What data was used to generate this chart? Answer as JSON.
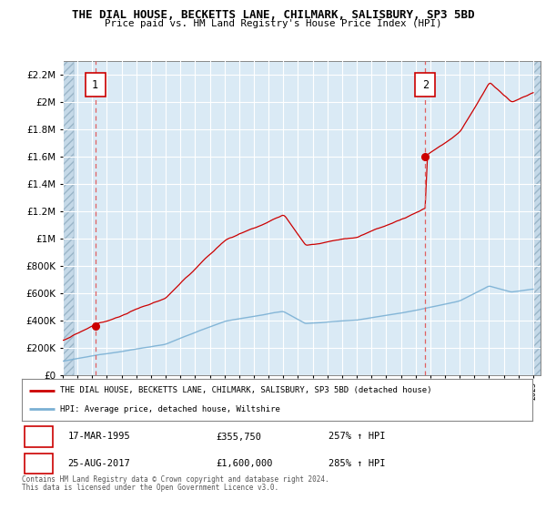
{
  "title": "THE DIAL HOUSE, BECKETTS LANE, CHILMARK, SALISBURY, SP3 5BD",
  "subtitle": "Price paid vs. HM Land Registry's House Price Index (HPI)",
  "legend_line1": "THE DIAL HOUSE, BECKETTS LANE, CHILMARK, SALISBURY, SP3 5BD (detached house)",
  "legend_line2": "HPI: Average price, detached house, Wiltshire",
  "footnote1": "Contains HM Land Registry data © Crown copyright and database right 2024.",
  "footnote2": "This data is licensed under the Open Government Licence v3.0.",
  "sale1_date": "17-MAR-1995",
  "sale1_price": "£355,750",
  "sale1_hpi": "257% ↑ HPI",
  "sale1_x": 1995.21,
  "sale1_y": 355750,
  "sale2_date": "25-AUG-2017",
  "sale2_price": "£1,600,000",
  "sale2_hpi": "285% ↑ HPI",
  "sale2_x": 2017.65,
  "sale2_y": 1600000,
  "xlim": [
    1993.0,
    2025.5
  ],
  "ylim": [
    0,
    2300000
  ],
  "chart_bg": "#daeaf5",
  "hatch_bg": "#c5d9e8",
  "grid_color": "#ffffff",
  "line_color_red": "#cc0000",
  "line_color_blue": "#7ab0d4",
  "marker_color": "#cc0000",
  "dashed_line_color": "#e06060"
}
